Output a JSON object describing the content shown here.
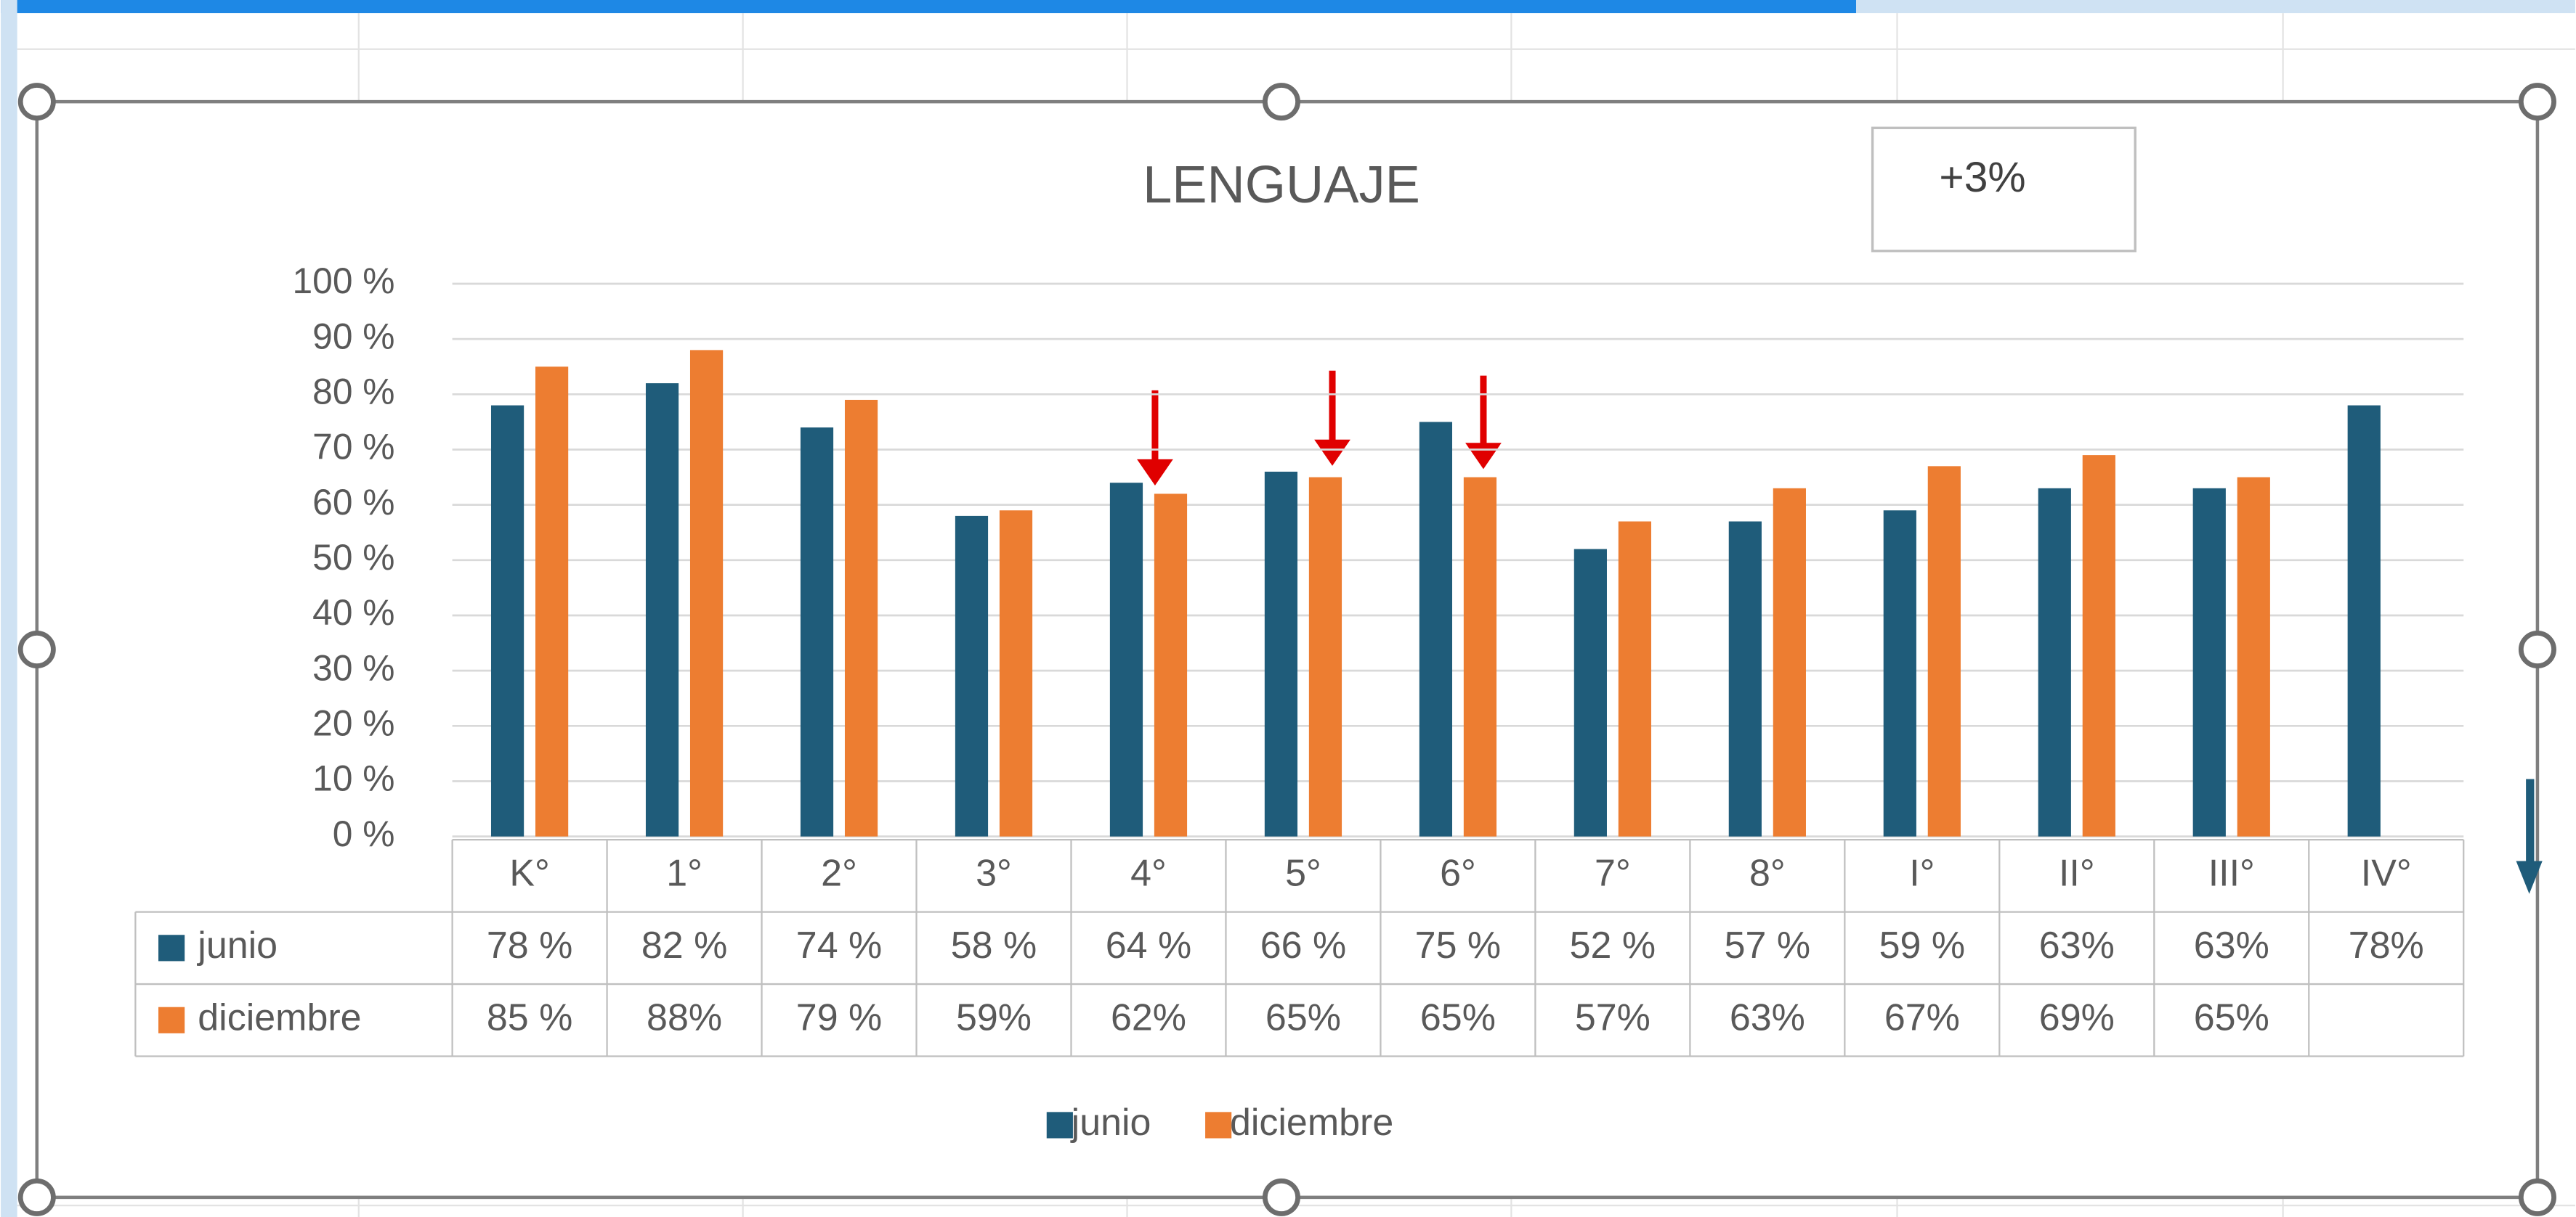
{
  "chart_data": {
    "type": "bar",
    "title": "LENGUAJE",
    "annotation": "+3%",
    "categories": [
      "K°",
      "1°",
      "2°",
      "3°",
      "4°",
      "5°",
      "6°",
      "7°",
      "8°",
      "I°",
      "II°",
      "III°",
      "IV°"
    ],
    "series": [
      {
        "name": "junio",
        "color": "#1f5c7a",
        "values": [
          78,
          82,
          74,
          58,
          64,
          66,
          75,
          52,
          57,
          59,
          63,
          63,
          78
        ],
        "value_labels": [
          "78 %",
          "82 %",
          "74 %",
          "58 %",
          "64 %",
          "66 %",
          "75 %",
          "52 %",
          "57 %",
          "59 %",
          "63%",
          "63%",
          "78%"
        ]
      },
      {
        "name": "diciembre",
        "color": "#ed7d31",
        "values": [
          85,
          88,
          79,
          59,
          62,
          65,
          65,
          57,
          63,
          67,
          69,
          65,
          null
        ],
        "value_labels": [
          "85 %",
          "88%",
          "79 %",
          "59%",
          "62%",
          "65%",
          "65%",
          "57%",
          "63%",
          "67%",
          "69%",
          "65%",
          null
        ]
      }
    ],
    "ylim": [
      0,
      100
    ],
    "yticks": [
      {
        "value": 0,
        "label": "0 %"
      },
      {
        "value": 10,
        "label": "10 %"
      },
      {
        "value": 20,
        "label": "20 %"
      },
      {
        "value": 30,
        "label": "30 %"
      },
      {
        "value": 40,
        "label": "40 %"
      },
      {
        "value": 50,
        "label": "50 %"
      },
      {
        "value": 60,
        "label": "60 %"
      },
      {
        "value": 70,
        "label": "70 %"
      },
      {
        "value": 80,
        "label": "80 %"
      },
      {
        "value": 90,
        "label": "90 %"
      },
      {
        "value": 100,
        "label": "100 %"
      }
    ],
    "grid": true,
    "legend": "bottom"
  }
}
